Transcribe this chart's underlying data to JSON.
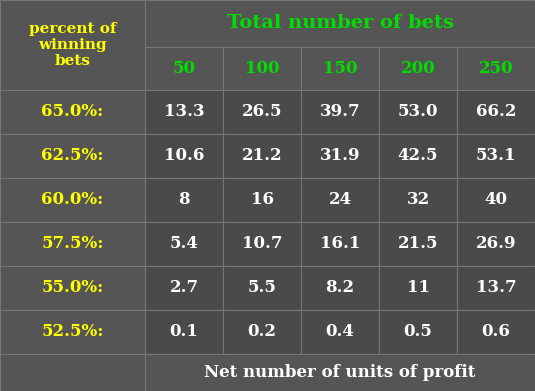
{
  "background_color": "#555555",
  "cell_bg_color": "#4a4a4a",
  "title_color": "#00dd00",
  "row_label_color": "#ffff00",
  "col_header_color": "#00dd00",
  "data_color": "#ffffff",
  "bottom_label_color": "#ffffff",
  "top_left_label": "percent of\nwinning\nbets",
  "col_header_label": "Total number of bets",
  "col_headers": [
    "50",
    "100",
    "150",
    "200",
    "250"
  ],
  "row_labels": [
    "65.0%:",
    "62.5%:",
    "60.0%:",
    "57.5%:",
    "55.0%:",
    "52.5%:"
  ],
  "table_data": [
    [
      "13.3",
      "26.5",
      "39.7",
      "53.0",
      "66.2"
    ],
    [
      "10.6",
      "21.2",
      "31.9",
      "42.5",
      "53.1"
    ],
    [
      "8",
      "16",
      "24",
      "32",
      "40"
    ],
    [
      "5.4",
      "10.7",
      "16.1",
      "21.5",
      "26.9"
    ],
    [
      "2.7",
      "5.5",
      "8.2",
      "11",
      "13.7"
    ],
    [
      "0.1",
      "0.2",
      "0.4",
      "0.5",
      "0.6"
    ]
  ],
  "bottom_label": "Net number of units of profit",
  "line_color": "#777777",
  "figsize": [
    5.35,
    3.91
  ],
  "dpi": 100
}
